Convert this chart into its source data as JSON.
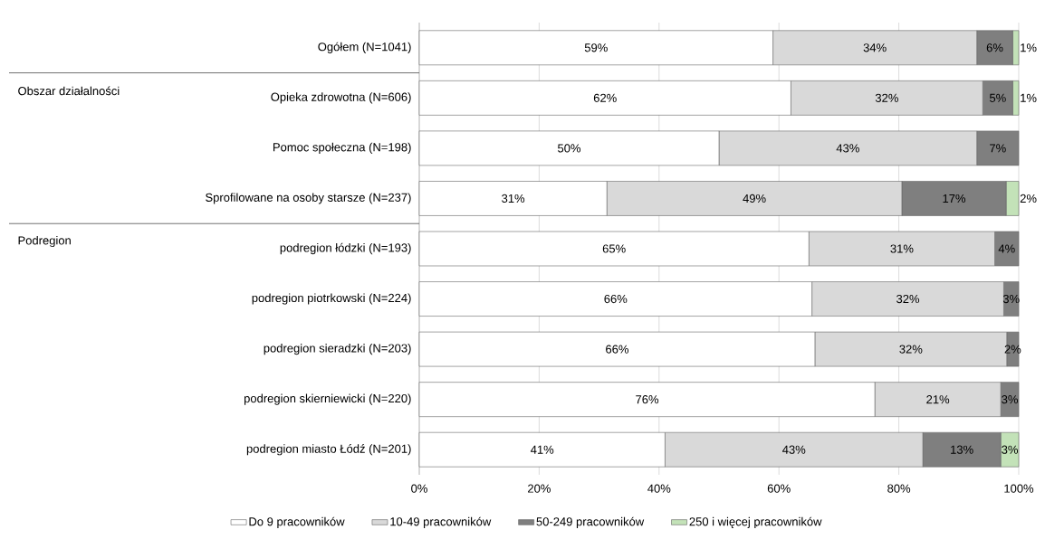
{
  "chart_data": {
    "type": "bar",
    "orientation": "horizontal",
    "stacked": true,
    "categories": [
      "Ogółem (N=1041)",
      "Opieka zdrowotna (N=606)",
      "Pomoc społeczna (N=198)",
      "Sprofilowane na osoby starsze (N=237)",
      "podregion łódzki (N=193)",
      "podregion piotrkowski (N=224)",
      "podregion sieradzki (N=203)",
      "podregion skierniewicki (N=220)",
      "podregion miasto Łódź (N=201)"
    ],
    "series": [
      {
        "name": "Do 9 pracowników",
        "color": "#ffffff",
        "values": [
          59,
          62,
          50,
          31.3,
          65,
          65.5,
          66,
          76,
          41
        ],
        "value_labels": [
          "59%",
          "62%",
          "50%",
          "31%",
          "65%",
          "66%",
          "66%",
          "76%",
          "41%"
        ]
      },
      {
        "name": "10-49 pracowników",
        "color": "#d9d9d9",
        "values": [
          34,
          32,
          43,
          49.2,
          31,
          32,
          32,
          21,
          43
        ],
        "value_labels": [
          "34%",
          "32%",
          "43%",
          "49%",
          "31%",
          "32%",
          "32%",
          "21%",
          "43%"
        ]
      },
      {
        "name": "50-249 pracowników",
        "color": "#7f7f7f",
        "values": [
          6,
          5,
          7,
          17.4,
          4,
          2.5,
          2,
          3,
          13
        ],
        "value_labels": [
          "6%",
          "5%",
          "7%",
          "17%",
          "4%",
          "3%",
          "2%",
          "3%",
          "13%"
        ]
      },
      {
        "name": "250 i więcej pracowników",
        "color": "#c3e2b8",
        "values": [
          1,
          1,
          null,
          2.1,
          null,
          null,
          null,
          null,
          3
        ],
        "value_labels": [
          "1%",
          "1%",
          null,
          "2%",
          null,
          null,
          null,
          null,
          "3%"
        ]
      }
    ],
    "xlim": [
      0,
      100
    ],
    "xticks": [
      {
        "value": 0,
        "label": "0%"
      },
      {
        "value": 20,
        "label": "20%"
      },
      {
        "value": 40,
        "label": "40%"
      },
      {
        "value": 60,
        "label": "60%"
      },
      {
        "value": 80,
        "label": "80%"
      },
      {
        "value": 100,
        "label": "100%"
      }
    ],
    "grid": "x",
    "legend": "bottom",
    "annotations": [
      "Obszar działalności",
      "Podregion"
    ]
  }
}
